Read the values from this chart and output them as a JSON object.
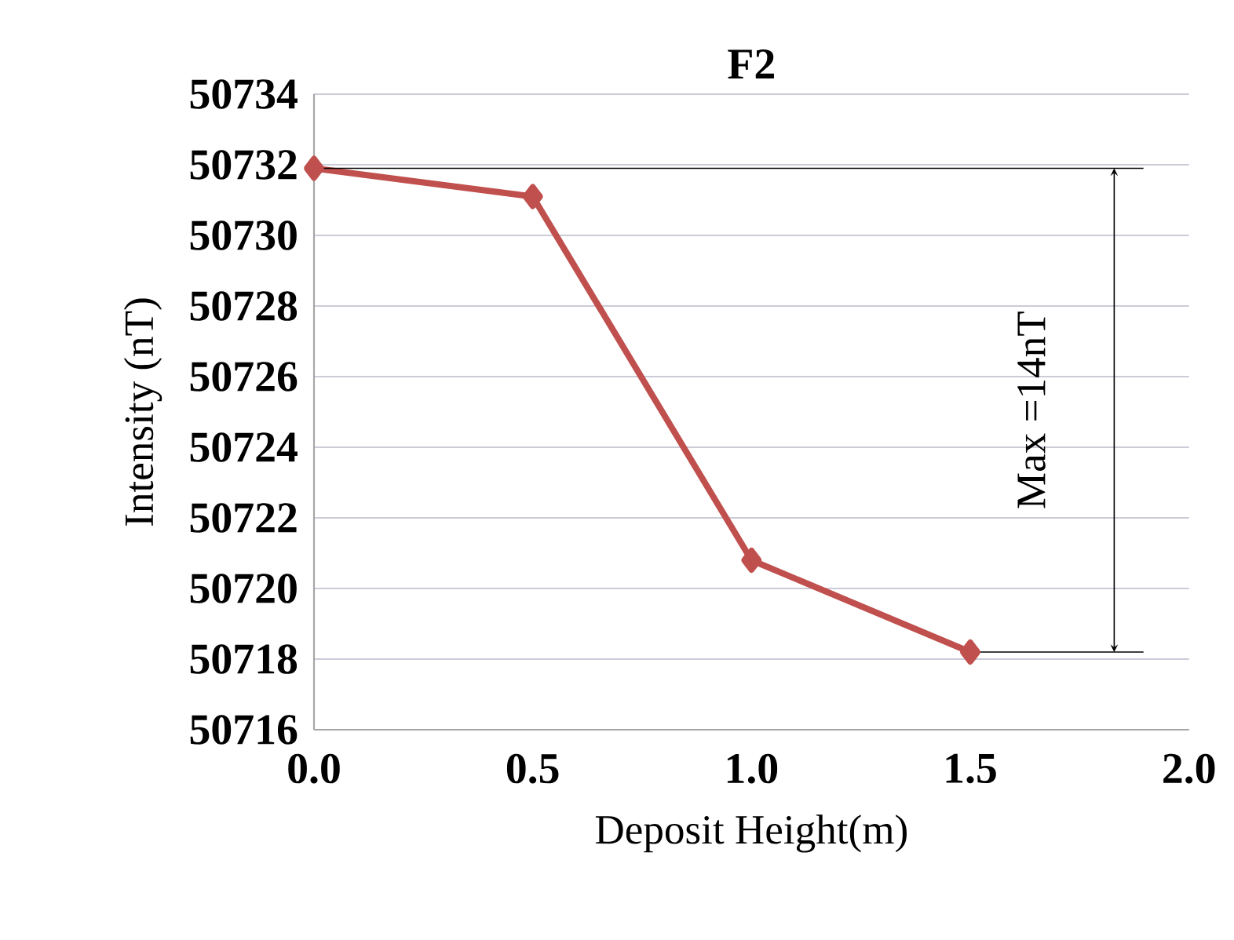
{
  "chart_data": {
    "type": "line",
    "title": "F2",
    "xlabel": "Deposit Height(m)",
    "ylabel": "Intensity (nT)",
    "x": [
      0,
      0.5,
      1.0,
      1.5
    ],
    "series": [
      {
        "color": "#c0504d",
        "values": [
          50731.9,
          50731.1,
          50720.8,
          50718.2
        ]
      }
    ],
    "xlim": [
      0,
      2
    ],
    "xticks": [
      {
        "value": 0,
        "label": "0.0"
      },
      {
        "value": 0.5,
        "label": "0.5"
      },
      {
        "value": 1,
        "label": "1.0"
      },
      {
        "value": 1.5,
        "label": "1.5"
      },
      {
        "value": 2,
        "label": "2.0"
      }
    ],
    "ylim": [
      50716,
      50734
    ],
    "yticks": [
      50716,
      50718,
      50720,
      50722,
      50724,
      50726,
      50728,
      50730,
      50732,
      50734
    ],
    "grid": "y",
    "marker": "diamond",
    "line_style": "solid",
    "ref_lines": [
      {
        "axis": "y",
        "value": 50731.9,
        "color": "#000000"
      },
      {
        "axis": "y",
        "value": 50718.2,
        "color": "#000000"
      }
    ],
    "annotations": [
      "Max =14nT"
    ]
  }
}
